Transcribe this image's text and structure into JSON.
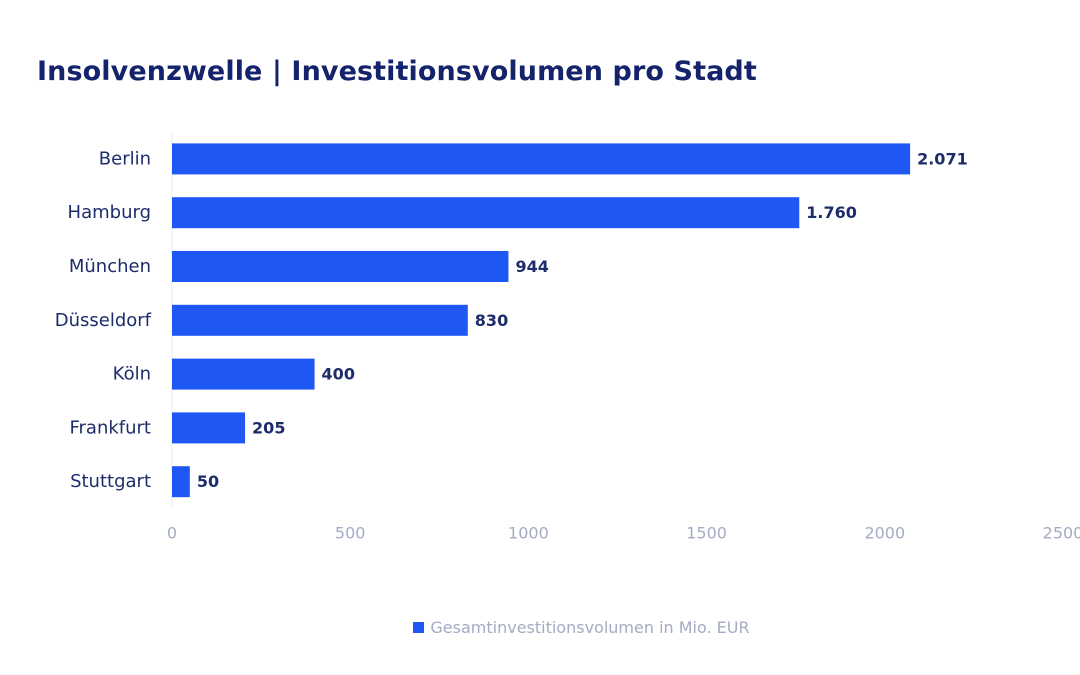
{
  "title": "Insolvenzwelle | Investitionsvolumen pro Stadt",
  "colors": {
    "bar": "#1f57f5",
    "text_dark": "#1d2c6b",
    "tick": "#a4abc4"
  },
  "chart_data": {
    "type": "bar",
    "orientation": "horizontal",
    "title": "Insolvenzwelle | Investitionsvolumen pro Stadt",
    "categories": [
      "Berlin",
      "Hamburg",
      "München",
      "Düsseldorf",
      "Köln",
      "Frankfurt",
      "Stuttgart"
    ],
    "values": [
      2071,
      1760,
      944,
      830,
      400,
      205,
      50
    ],
    "value_labels": [
      "2.071",
      "1.760",
      "944",
      "830",
      "400",
      "205",
      "50"
    ],
    "series": [
      {
        "name": "Gesamtinvestitionsvolumen in Mio. EUR",
        "values": [
          2071,
          1760,
          944,
          830,
          400,
          205,
          50
        ]
      }
    ],
    "xlim": [
      0,
      2500
    ],
    "xticks": [
      0,
      500,
      1000,
      1500,
      2000,
      2500
    ],
    "xtick_labels": [
      "0",
      "500",
      "1000",
      "1500",
      "2000",
      "2500"
    ],
    "grid": false,
    "legend_position": "bottom-center"
  },
  "legend": {
    "label": "Gesamtinvestitionsvolumen in Mio. EUR"
  }
}
